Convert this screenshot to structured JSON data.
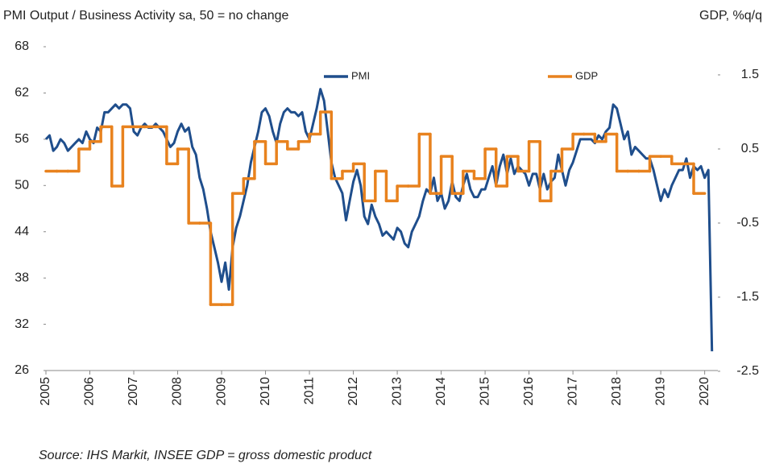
{
  "chart_data": {
    "type": "line",
    "title": "PMI Output / Business Activity sa, 50 = no change",
    "y2_label": "GDP, %q/q",
    "source": "Source: IHS Markit, INSEE GDP = gross domestic product",
    "legend": "top",
    "xlim": [
      2005,
      2020.3
    ],
    "xticks": [
      2005,
      2006,
      2007,
      2008,
      2009,
      2010,
      2011,
      2012,
      2013,
      2014,
      2015,
      2016,
      2017,
      2018,
      2019,
      2020
    ],
    "ylim": [
      26,
      68
    ],
    "yticks": [
      26,
      32,
      38,
      44,
      50,
      56,
      62,
      68
    ],
    "y2lim": [
      -2.49,
      1.88
    ],
    "y2ticks": [
      -2.5,
      -1.5,
      -0.5,
      0.5,
      1.5
    ],
    "series": [
      {
        "name": "PMI",
        "color": "#1f4e8c",
        "start": 2005,
        "step_per_year": 12,
        "values": [
          56,
          56.5,
          54.5,
          55,
          56,
          55.5,
          54.5,
          55,
          55.5,
          56,
          55.5,
          57,
          56,
          55.5,
          57.5,
          57,
          59.5,
          59.5,
          60,
          60.5,
          60,
          60.5,
          60.5,
          60,
          57,
          56.5,
          57.5,
          58,
          57.5,
          57.5,
          58,
          57.5,
          57,
          56,
          55,
          55.5,
          57,
          58,
          57,
          57.5,
          55,
          54,
          51,
          49.5,
          47,
          44,
          42,
          40,
          37.5,
          40,
          36.5,
          42,
          44.5,
          46,
          48,
          50,
          53,
          55,
          57,
          59.5,
          60,
          59,
          57,
          55.5,
          58,
          59.5,
          60,
          59.5,
          59.5,
          59,
          59.5,
          57,
          56,
          58,
          60,
          62.5,
          61,
          57,
          53,
          51,
          50,
          49,
          45.5,
          48,
          50.5,
          52,
          50,
          46,
          45,
          47.5,
          46,
          45,
          43.5,
          44,
          43.5,
          43,
          44.5,
          44,
          42.5,
          42,
          44,
          45,
          46,
          48,
          49.5,
          49,
          51,
          48,
          49,
          47,
          48,
          50.5,
          48.5,
          48,
          50,
          51.5,
          49.5,
          48.5,
          48.5,
          49.5,
          49.5,
          51,
          52.5,
          50,
          52.5,
          54,
          51.5,
          53.5,
          51.5,
          52.5,
          52,
          51.5,
          50,
          51.5,
          51.5,
          49.5,
          51.5,
          49.5,
          50.5,
          51,
          54,
          52,
          50,
          52,
          53,
          54.5,
          56,
          56,
          56,
          56,
          55.5,
          56.5,
          56,
          57,
          57.5,
          60.5,
          60,
          58,
          56,
          57,
          54,
          55,
          54.5,
          54,
          53.5,
          53.5,
          52,
          50,
          48,
          49.5,
          48.5,
          50,
          51,
          52,
          52,
          53.5,
          51,
          52.5,
          52,
          52.5,
          51,
          52,
          28.5
        ]
      },
      {
        "name": "GDP",
        "color": "#e8821e",
        "axis": "y2",
        "start": 2005,
        "step_per_year": 4,
        "step": true,
        "values": [
          0.2,
          0.2,
          0.2,
          0.5,
          0.6,
          0.8,
          0.0,
          0.8,
          0.8,
          0.8,
          0.8,
          0.3,
          0.5,
          -0.5,
          -0.5,
          -1.6,
          -1.6,
          -0.1,
          0.1,
          0.6,
          0.3,
          0.6,
          0.5,
          0.6,
          0.7,
          1.0,
          0.1,
          0.2,
          0.3,
          -0.2,
          0.2,
          -0.2,
          0.0,
          0.0,
          0.7,
          -0.1,
          0.4,
          -0.1,
          0.2,
          0.1,
          0.5,
          0.0,
          0.4,
          0.2,
          0.6,
          -0.2,
          0.2,
          0.5,
          0.7,
          0.7,
          0.6,
          0.7,
          0.2,
          0.2,
          0.2,
          0.4,
          0.4,
          0.3,
          0.3,
          -0.1
        ]
      }
    ]
  }
}
